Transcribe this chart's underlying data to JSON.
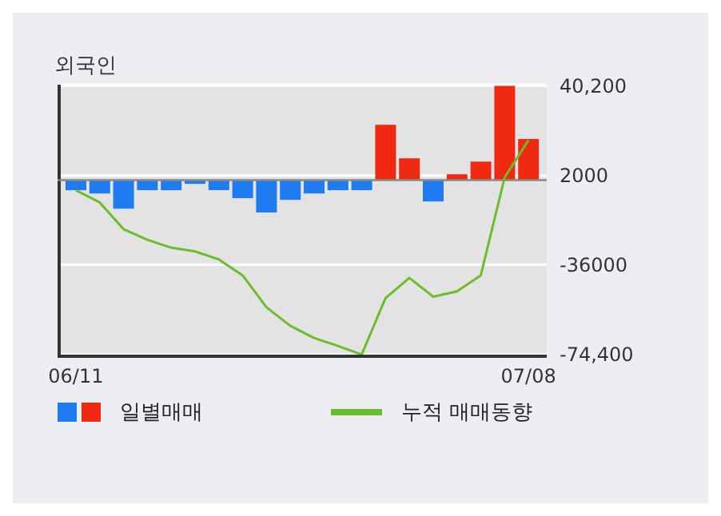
{
  "chart_data": {
    "type": "bar",
    "title": "외국인",
    "categories": [
      "06/11",
      null,
      null,
      null,
      null,
      null,
      null,
      null,
      null,
      null,
      null,
      null,
      null,
      null,
      null,
      null,
      null,
      null,
      null,
      "07/08"
    ],
    "series": [
      {
        "name": "일별매매",
        "colors": [
          "#1f7cf0",
          "#1f7cf0",
          "#1f7cf0",
          "#1f7cf0",
          "#1f7cf0",
          "#1f7cf0",
          "#1f7cf0",
          "#1f7cf0",
          "#1f7cf0",
          "#1f7cf0",
          "#1f7cf0",
          "#1f7cf0",
          "#1f7cf0",
          "#f02a12",
          "#f02a12",
          "#1f7cf0",
          "#f02a12",
          "#f02a12",
          "#f02a12",
          "#f02a12"
        ],
        "values": [
          -4300,
          -5700,
          -12200,
          -4300,
          -4300,
          -1600,
          -4300,
          -7700,
          -13800,
          -8400,
          -5700,
          -4300,
          -4300,
          23600,
          9300,
          -9100,
          2500,
          7900,
          40200,
          17500
        ]
      },
      {
        "name": "누적 매매동향",
        "type": "line",
        "color": "#6cbd2c",
        "values": [
          -4300,
          -9500,
          -20900,
          -25400,
          -28800,
          -30400,
          -33800,
          -40600,
          -54200,
          -62100,
          -67300,
          -70700,
          -74400,
          -50300,
          -41700,
          -49700,
          -47400,
          -40600,
          1100,
          17000
        ]
      }
    ],
    "ylim": [
      -75100,
      40700
    ],
    "yticks": [
      {
        "value": 40200,
        "label": "40,200"
      },
      2000,
      -36000,
      {
        "value": -74400,
        "label": "-74,400"
      }
    ],
    "ref_lines": [
      {
        "axis": "y",
        "value": 0,
        "color": "#888888"
      }
    ],
    "grid": "y",
    "legend": "bottom",
    "marker": "none"
  }
}
